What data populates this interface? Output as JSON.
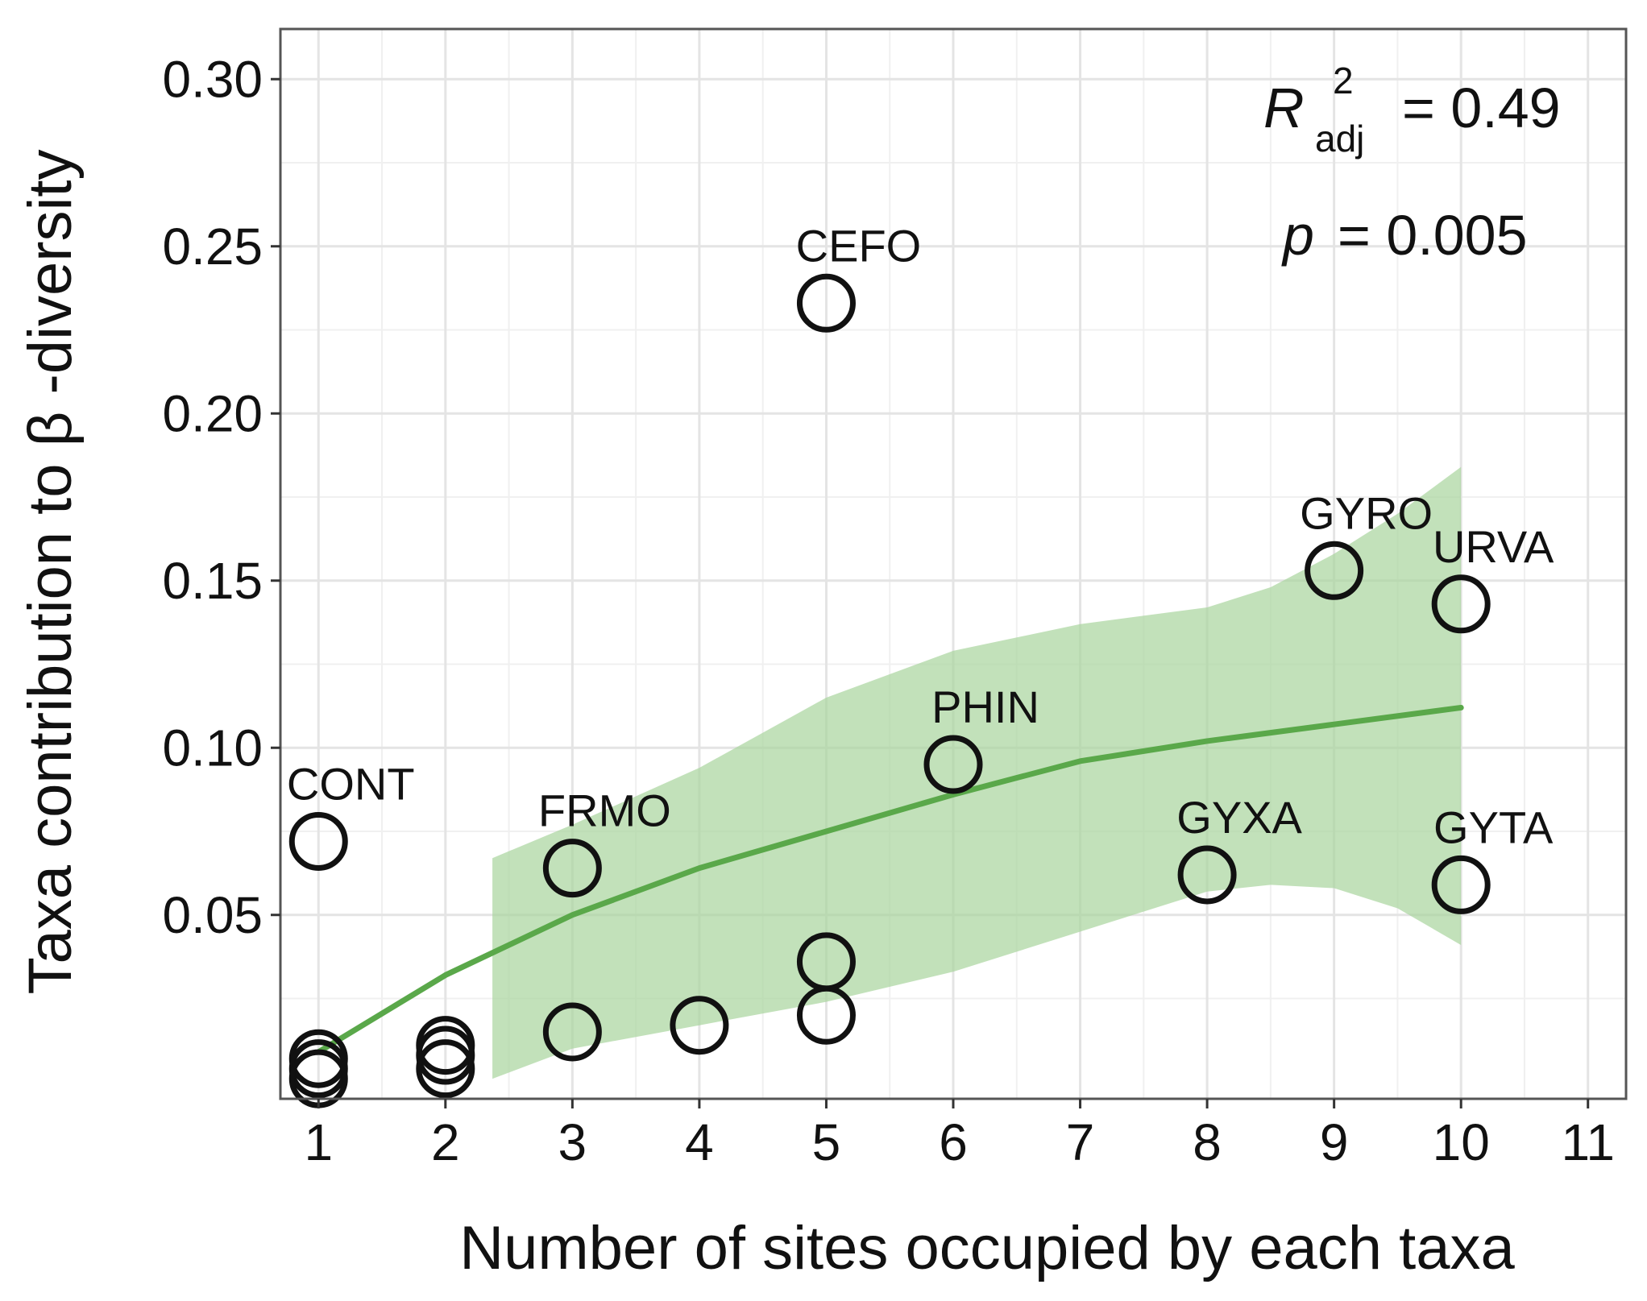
{
  "chart_data": {
    "type": "scatter",
    "xlabel": "Number of sites occupied by each taxa",
    "ylabel": "Taxa contribution to β -diversity",
    "xlim": [
      0.7,
      11.3
    ],
    "ylim": [
      -0.005,
      0.315
    ],
    "x_ticks": [
      1,
      2,
      3,
      4,
      5,
      6,
      7,
      8,
      9,
      10,
      11
    ],
    "x_tick_labels": [
      "1",
      "2",
      "3",
      "4",
      "5",
      "6",
      "7",
      "8",
      "9",
      "10",
      "11"
    ],
    "y_ticks": [
      0.05,
      0.1,
      0.15,
      0.2,
      0.25,
      0.3
    ],
    "y_tick_labels": [
      "0.05",
      "0.10",
      "0.15",
      "0.20",
      "0.25",
      "0.30"
    ],
    "grid": true,
    "points": [
      {
        "x": 1,
        "y": 0.072,
        "label": "CONT"
      },
      {
        "x": 1,
        "y": 0.007,
        "label": ""
      },
      {
        "x": 1,
        "y": 0.004,
        "label": ""
      },
      {
        "x": 1,
        "y": 0.001,
        "label": ""
      },
      {
        "x": 2,
        "y": 0.011,
        "label": ""
      },
      {
        "x": 2,
        "y": 0.008,
        "label": ""
      },
      {
        "x": 2,
        "y": 0.004,
        "label": ""
      },
      {
        "x": 3,
        "y": 0.064,
        "label": "FRMO"
      },
      {
        "x": 3,
        "y": 0.015,
        "label": ""
      },
      {
        "x": 4,
        "y": 0.017,
        "label": ""
      },
      {
        "x": 5,
        "y": 0.233,
        "label": "CEFO"
      },
      {
        "x": 5,
        "y": 0.036,
        "label": ""
      },
      {
        "x": 5,
        "y": 0.02,
        "label": ""
      },
      {
        "x": 6,
        "y": 0.095,
        "label": "PHIN"
      },
      {
        "x": 8,
        "y": 0.062,
        "label": "GYXA"
      },
      {
        "x": 9,
        "y": 0.153,
        "label": "GYRO"
      },
      {
        "x": 10,
        "y": 0.143,
        "label": "URVA"
      },
      {
        "x": 10,
        "y": 0.059,
        "label": "GYTA"
      }
    ],
    "fit_line": {
      "color": "#5aa84a",
      "x": [
        1,
        2,
        3,
        4,
        5,
        6,
        7,
        8,
        9,
        10
      ],
      "y": [
        0.009,
        0.032,
        0.05,
        0.064,
        0.075,
        0.086,
        0.096,
        0.102,
        0.107,
        0.112
      ]
    },
    "confidence_band": {
      "color": "#a8d49c",
      "x": [
        2.37,
        3,
        4,
        5,
        6,
        7,
        8,
        8.5,
        9,
        9.5,
        10
      ],
      "lower": [
        0.001,
        0.01,
        0.017,
        0.024,
        0.033,
        0.045,
        0.057,
        0.059,
        0.058,
        0.052,
        0.041
      ],
      "upper": [
        0.067,
        0.077,
        0.094,
        0.115,
        0.129,
        0.137,
        0.142,
        0.148,
        0.158,
        0.17,
        0.184
      ]
    },
    "annotations": {
      "r2_symbol": "R",
      "r2_sup": "2",
      "r2_sub": "adj",
      "r2_value": "= 0.49",
      "p_symbol": "p",
      "p_value": "= 0.005"
    }
  }
}
